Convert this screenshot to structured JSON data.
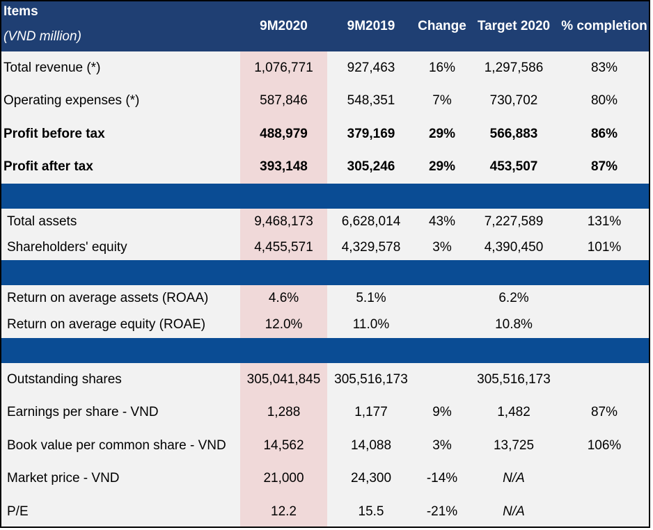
{
  "header": {
    "items_label": "Items",
    "unit_label": "(VND million)",
    "columns": [
      "9M2020",
      "9M2019",
      "Change",
      "Target 2020",
      "% completion"
    ]
  },
  "group1": [
    {
      "label": "Total revenue (*)",
      "v2020": "1,076,771",
      "v2019": "927,463",
      "change": "16%",
      "target": "1,297,586",
      "completion": "83%",
      "bold": false
    },
    {
      "label": "Operating expenses (*)",
      "v2020": "587,846",
      "v2019": "548,351",
      "change": "7%",
      "target": "730,702",
      "completion": "80%",
      "bold": false
    },
    {
      "label": "Profit before tax",
      "v2020": "488,979",
      "v2019": "379,169",
      "change": "29%",
      "target": "566,883",
      "completion": "86%",
      "bold": true
    },
    {
      "label": "Profit after tax",
      "v2020": "393,148",
      "v2019": "305,246",
      "change": "29%",
      "target": "453,507",
      "completion": "87%",
      "bold": true
    }
  ],
  "group2": [
    {
      "label": "Total assets",
      "v2020": "9,468,173",
      "v2019": "6,628,014",
      "change": "43%",
      "target": "7,227,589",
      "completion": "131%"
    },
    {
      "label": "Shareholders' equity",
      "v2020": "4,455,571",
      "v2019": "4,329,578",
      "change": "3%",
      "target": "4,390,450",
      "completion": "101%"
    }
  ],
  "group3": [
    {
      "label": "Return on average assets (ROAA)",
      "v2020": "4.6%",
      "v2019": "5.1%",
      "change": "",
      "target": "6.2%",
      "completion": ""
    },
    {
      "label": "Return on average equity (ROAE)",
      "v2020": "12.0%",
      "v2019": "11.0%",
      "change": "",
      "target": "10.8%",
      "completion": ""
    }
  ],
  "group4": [
    {
      "label": "Outstanding shares",
      "v2020": "305,041,845",
      "v2019": "305,516,173",
      "change": "",
      "target": "305,516,173",
      "completion": ""
    },
    {
      "label": "Earnings per share - VND",
      "v2020": "1,288",
      "v2019": "1,177",
      "change": "9%",
      "target": "1,482",
      "completion": "87%"
    },
    {
      "label": "Book value per common share - VND",
      "v2020": "14,562",
      "v2019": "14,088",
      "change": "3%",
      "target": "13,725",
      "completion": "106%"
    },
    {
      "label": "Market price - VND",
      "v2020": "21,000",
      "v2019": "24,300",
      "change": "-14%",
      "target": "N/A",
      "completion": ""
    },
    {
      "label": "P/E",
      "v2020": "12.2",
      "v2019": "15.5",
      "change": "-21%",
      "target": "N/A",
      "completion": ""
    }
  ],
  "colors": {
    "header": "#1f3f73",
    "band": "#0a4c94",
    "highlight": "#f0d9d9",
    "body": "#f2f2f2"
  }
}
